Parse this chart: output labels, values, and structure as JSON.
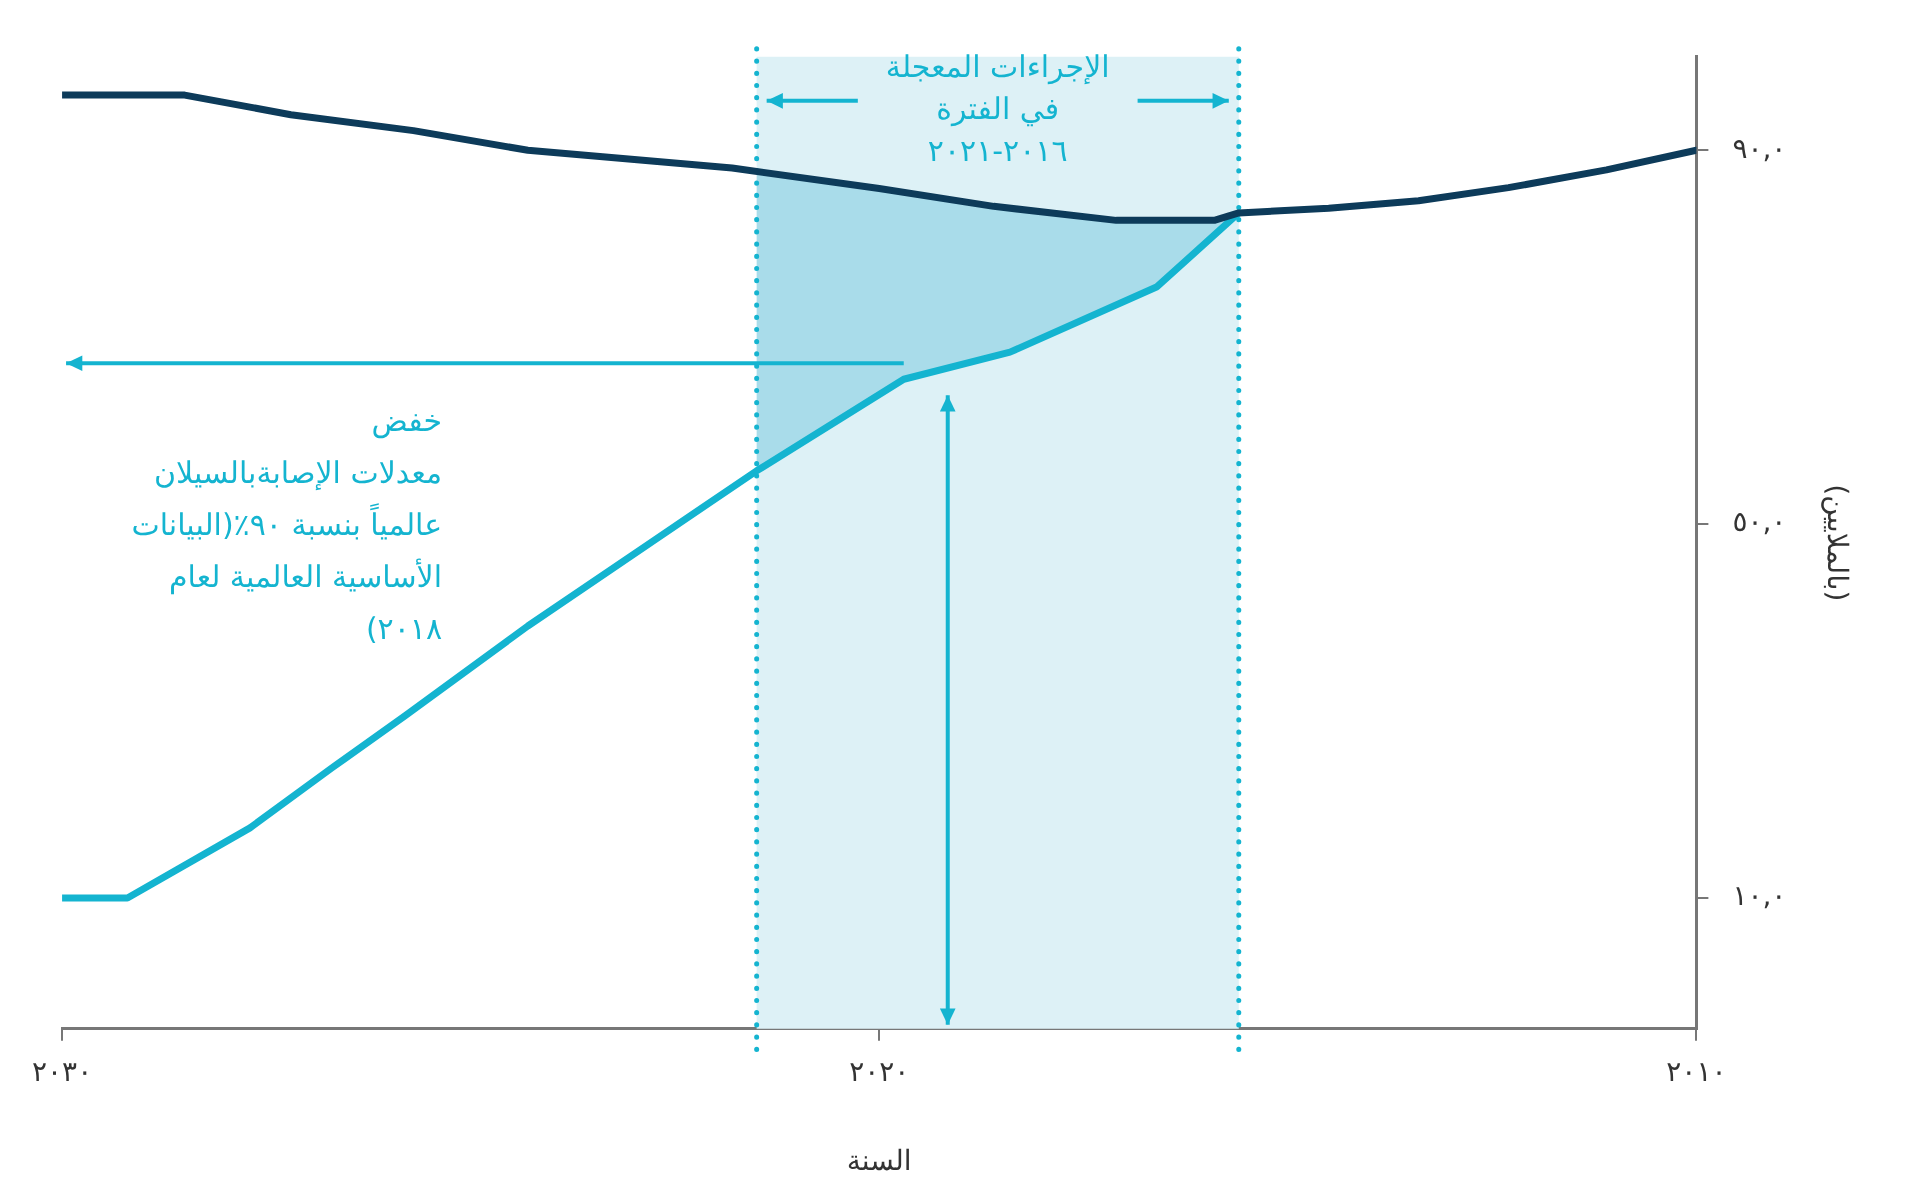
{
  "chart_data": {
    "type": "line",
    "xlabel": "السنة",
    "ylabel": "(بالملايين)",
    "xlim": [
      2030,
      2010
    ],
    "xticks": [
      {
        "value": 2030,
        "label": "٢٠٣٠"
      },
      {
        "value": 2020,
        "label": "٢٠٢٠"
      },
      {
        "value": 2010,
        "label": "٢٠١٠"
      }
    ],
    "ylim": [
      -4,
      100
    ],
    "yticks": [
      {
        "value": 10,
        "label": "١٠,٠"
      },
      {
        "value": 50,
        "label": "٥٠,٠"
      },
      {
        "value": 90,
        "label": "٩٠,٠"
      }
    ],
    "series": [
      {
        "color": "#0d3b5a",
        "x": [
          2030,
          2028.5,
          2027.2,
          2025.7,
          2024.3,
          2021.8,
          2020,
          2018.6,
          2017.1,
          2015.9,
          2015.6,
          2014.5,
          2013.4,
          2012.3,
          2011.1,
          2010
        ],
        "values": [
          95.9,
          95.9,
          93.8,
          92.1,
          90,
          88.1,
          85.9,
          84,
          82.5,
          82.5,
          83.3,
          83.8,
          84.6,
          86,
          87.9,
          90
        ]
      },
      {
        "color": "#14b4d0",
        "x": [
          2030,
          2029.2,
          2027.7,
          2026.7,
          2025.8,
          2024.3,
          2022.8,
          2021.5,
          2019.7,
          2018.4,
          2016.6,
          2015.6
        ],
        "values": [
          10,
          10,
          17.5,
          23.9,
          29.5,
          39.1,
          48,
          55.7,
          65.5,
          68.4,
          75.4,
          83.3
        ]
      }
    ],
    "bands": [
      {
        "axis": "x",
        "from": 2021.5,
        "to": 2015.6,
        "color": "#ddf1f6"
      }
    ],
    "ref_lines": [
      {
        "axis": "x",
        "value": 2021.5,
        "color": "#14b4d0",
        "line_style": "dotted"
      },
      {
        "axis": "x",
        "value": 2015.6,
        "color": "#14b4d0",
        "line_style": "dotted"
      }
    ],
    "annotations": [
      "الإجراءات المعجلة\nفي الفترة\n٢٠١٦-٢٠٢١",
      "خفض\nمعدلات الإصابةبالسيلان\nعالمياً بنسبة ٩٠٪(البيانات\nالأساسية العالمية لعام\n٢٠١٨)"
    ],
    "grid": false,
    "legend": false,
    "marker": "none",
    "line_style": "solid"
  }
}
